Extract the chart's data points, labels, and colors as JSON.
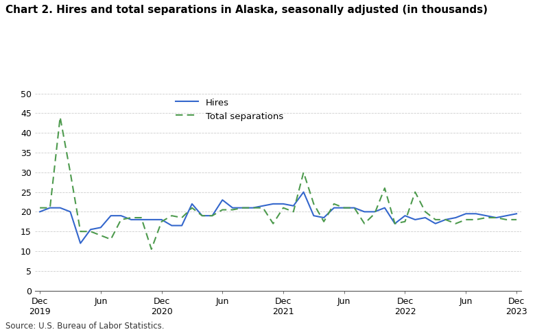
{
  "title": "Chart 2. Hires and total separations in Alaska, seasonally adjusted (in thousands)",
  "source": "Source: U.S. Bureau of Labor Statistics.",
  "hires": [
    20.0,
    21.0,
    21.0,
    20.0,
    12.0,
    15.5,
    16.0,
    19.0,
    19.0,
    18.0,
    18.0,
    18.0,
    18.0,
    16.5,
    16.5,
    22.0,
    19.0,
    19.0,
    23.0,
    21.0,
    21.0,
    21.0,
    21.5,
    22.0,
    22.0,
    21.5,
    25.0,
    19.0,
    18.5,
    21.0,
    21.0,
    21.0,
    20.0,
    20.0,
    21.0,
    17.0,
    19.0,
    18.0,
    18.5,
    17.0,
    18.0,
    18.5,
    19.5,
    19.5,
    19.0,
    18.5,
    19.0,
    19.5
  ],
  "separations": [
    21.0,
    21.0,
    44.0,
    30.0,
    15.0,
    15.0,
    14.0,
    13.0,
    18.0,
    18.5,
    18.5,
    10.5,
    17.5,
    19.0,
    18.5,
    21.0,
    19.0,
    19.0,
    20.5,
    20.5,
    21.0,
    21.0,
    21.0,
    17.0,
    21.0,
    20.0,
    30.0,
    22.0,
    17.5,
    22.0,
    21.0,
    21.0,
    17.0,
    19.5,
    26.0,
    17.0,
    17.5,
    25.0,
    20.0,
    18.0,
    18.0,
    17.0,
    18.0,
    18.0,
    18.5,
    18.5,
    18.0,
    18.0
  ],
  "major_positions": [
    0,
    6,
    12,
    18,
    24,
    30,
    36,
    42,
    47
  ],
  "major_labels": [
    "Dec",
    "Jun",
    "Dec",
    "Jun",
    "Dec",
    "Jun",
    "Dec",
    "Jun",
    "Dec"
  ],
  "year_labels": [
    [
      "Dec\n2019",
      0
    ],
    [
      "Dec\n2020",
      12
    ],
    [
      "Dec\n2021",
      24
    ],
    [
      "Dec\n2022",
      36
    ],
    [
      "Dec\n2023",
      47
    ]
  ],
  "ylim": [
    0,
    50
  ],
  "yticks": [
    0,
    5,
    10,
    15,
    20,
    25,
    30,
    35,
    40,
    45,
    50
  ],
  "hires_color": "#3366cc",
  "sep_color": "#4d9a4d",
  "background_color": "#ffffff",
  "title_fontsize": 11,
  "legend_fontsize": 9.5,
  "axis_fontsize": 9
}
